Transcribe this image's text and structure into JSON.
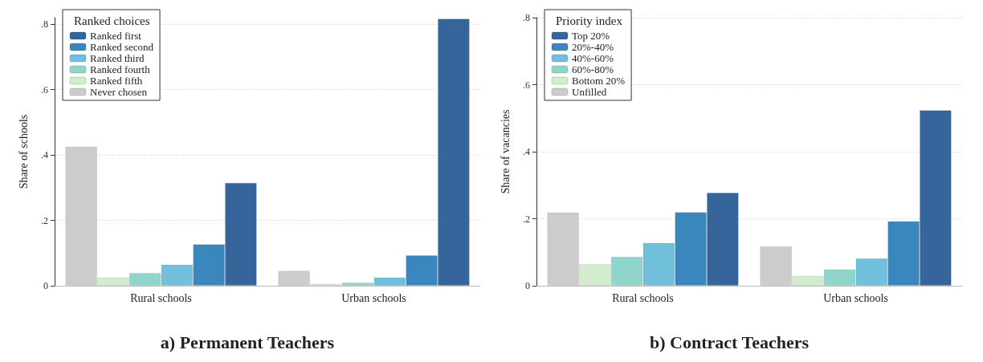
{
  "chart_data": [
    {
      "type": "bar",
      "title": "a) Permanent Teachers",
      "ylabel": "Share of schools",
      "legend_title": "Ranked choices",
      "categories": [
        "Rural schools",
        "Urban schools"
      ],
      "series": [
        {
          "name": "Ranked first",
          "color": "#35659a",
          "values": [
            0.315,
            0.817
          ]
        },
        {
          "name": "Ranked second",
          "color": "#3a87bd",
          "values": [
            0.127,
            0.093
          ]
        },
        {
          "name": "Ranked third",
          "color": "#70c0dc",
          "values": [
            0.065,
            0.026
          ]
        },
        {
          "name": "Ranked fourth",
          "color": "#8fd5cc",
          "values": [
            0.039,
            0.01
          ]
        },
        {
          "name": "Ranked fifth",
          "color": "#d3ecd0",
          "values": [
            0.026,
            0.006
          ]
        },
        {
          "name": "Never chosen",
          "color": "#cccccc",
          "values": [
            0.426,
            0.046
          ]
        }
      ],
      "ylim": [
        0,
        0.82
      ],
      "yticks": [
        0,
        {
          "value": 0.2,
          "label": ".2"
        },
        {
          "value": 0.4,
          "label": ".4"
        },
        {
          "value": 0.6,
          "label": ".6"
        },
        {
          "value": 0.8,
          "label": ".8"
        }
      ],
      "grid": "y",
      "legend": "top left"
    },
    {
      "type": "bar",
      "title": "b) Contract Teachers",
      "ylabel": "Share of vacancies",
      "legend_title": "Priority index",
      "categories": [
        "Rural schools",
        "Urban schools"
      ],
      "series": [
        {
          "name": "Top 20%",
          "color": "#35659a",
          "values": [
            0.278,
            0.524
          ]
        },
        {
          "name": "20%-40%",
          "color": "#3a87bd",
          "values": [
            0.22,
            0.193
          ]
        },
        {
          "name": "40%-60%",
          "color": "#70c0dc",
          "values": [
            0.128,
            0.082
          ]
        },
        {
          "name": "60%-80%",
          "color": "#8fd5cc",
          "values": [
            0.087,
            0.049
          ]
        },
        {
          "name": "Bottom 20%",
          "color": "#d3ecd0",
          "values": [
            0.065,
            0.03
          ]
        },
        {
          "name": "Unfilled",
          "color": "#cccccc",
          "values": [
            0.219,
            0.118
          ]
        }
      ],
      "ylim": [
        0,
        0.8
      ],
      "yticks": [
        0,
        {
          "value": 0.2,
          "label": ".2"
        },
        {
          "value": 0.4,
          "label": ".4"
        },
        {
          "value": 0.6,
          "label": ".6"
        },
        {
          "value": 0.8,
          "label": ".8"
        }
      ],
      "grid": "y",
      "legend": "top left"
    }
  ]
}
